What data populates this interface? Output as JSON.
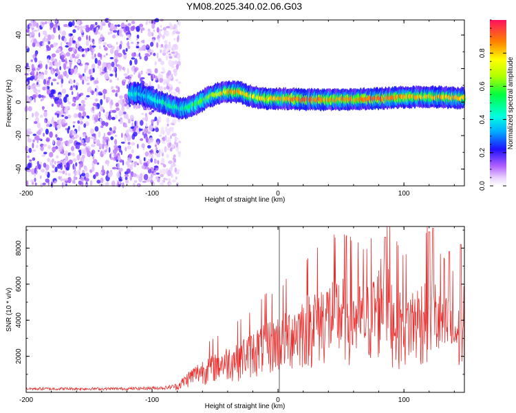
{
  "title": "YM08.2025.340.02.06.G03",
  "colors": {
    "snr_line": "#e8302f",
    "axis": "#000000",
    "zero_line": "#555555"
  },
  "chart_data": [
    {
      "type": "heatmap",
      "xlabel": "Height of straight line (km)",
      "ylabel": "Frequency (Hz)",
      "xlim": [
        -200,
        148
      ],
      "ylim": [
        -50,
        49
      ],
      "xticks": [
        -200,
        -100,
        0,
        100
      ],
      "yticks": [
        -40,
        -20,
        0,
        20,
        40
      ],
      "colorbar": {
        "label": "Normalized spectral amplitude",
        "range": [
          0,
          1
        ],
        "ticks": [
          0.0,
          0.2,
          0.4,
          0.6,
          0.8
        ]
      },
      "noise_region_x": [
        -200,
        -78
      ],
      "ridge": {
        "x": [
          -118,
          -110,
          -100,
          -92,
          -85,
          -78,
          -70,
          -62,
          -55,
          -48,
          -42,
          -36,
          -30,
          -24,
          -18,
          -10,
          0,
          10,
          20,
          30,
          40,
          50,
          60,
          70,
          80,
          90,
          100,
          110,
          120,
          130,
          140,
          148
        ],
        "freq": [
          5,
          5,
          2,
          0,
          -2,
          -4,
          -3,
          0,
          3,
          5,
          6,
          6,
          6,
          4,
          3,
          2,
          2,
          2,
          1.5,
          1.5,
          1.5,
          1.5,
          1.5,
          2,
          2,
          2.5,
          3,
          3,
          3,
          3,
          2.5,
          2.5
        ],
        "amplitude": [
          0.45,
          0.4,
          0.4,
          0.45,
          0.5,
          0.45,
          0.55,
          0.6,
          0.65,
          0.7,
          0.8,
          0.85,
          0.8,
          0.75,
          0.75,
          0.8,
          0.8,
          0.85,
          0.9,
          0.9,
          0.85,
          0.85,
          0.85,
          0.9,
          0.9,
          0.85,
          0.85,
          0.8,
          0.8,
          0.8,
          0.8,
          0.8
        ]
      }
    },
    {
      "type": "line",
      "xlabel": "Height of straight line (km)",
      "ylabel": "SNR (10 * v/v)",
      "xlim": [
        -200,
        148
      ],
      "ylim": [
        0,
        9200
      ],
      "xticks": [
        -200,
        -100,
        0,
        100
      ],
      "yticks": [
        2000,
        4000,
        6000,
        8000
      ],
      "envelope": {
        "x": [
          -200,
          -120,
          -90,
          -80,
          -70,
          -60,
          -50,
          -40,
          -30,
          -20,
          -10,
          0,
          10,
          20,
          30,
          40,
          50,
          60,
          70,
          80,
          85,
          90,
          100,
          110,
          120,
          130,
          140,
          148
        ],
        "snr": [
          200,
          200,
          250,
          350,
          900,
          1300,
          1600,
          1800,
          2100,
          2400,
          2800,
          3000,
          3400,
          3800,
          4200,
          4400,
          4600,
          4400,
          4200,
          5000,
          6500,
          4500,
          4000,
          4200,
          4800,
          4000,
          3500,
          3000
        ]
      },
      "peaks": [
        {
          "x": 85,
          "snr": 8600
        },
        {
          "x": 120,
          "snr": 8900
        },
        {
          "x": 123,
          "snr": 9100
        },
        {
          "x": 136,
          "snr": 7800
        },
        {
          "x": 145,
          "snr": 8200
        }
      ]
    }
  ]
}
